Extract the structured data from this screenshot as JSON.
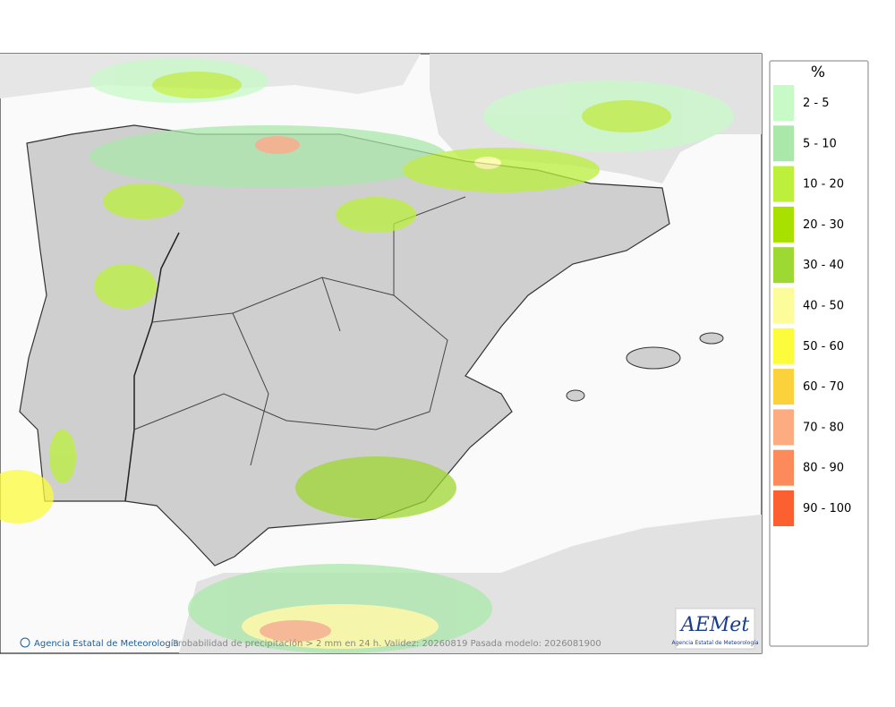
{
  "map": {
    "footer": {
      "agency": "Agencia Estatal de Meteorología",
      "caption": "Probabilidad de precipitación > 2 mm en 24 h. Validez: 20260819 Pasada modelo: 2026081900"
    },
    "logo": {
      "text": "AEMet",
      "subtitle": "Agencia Estatal de Meteorología"
    }
  },
  "legend": {
    "title": "%",
    "items": [
      {
        "label": "2 - 5",
        "color": "#c8fac8"
      },
      {
        "label": "5 - 10",
        "color": "#aae8aa"
      },
      {
        "label": "10 - 20",
        "color": "#bcf03c"
      },
      {
        "label": "20 - 30",
        "color": "#a8e000"
      },
      {
        "label": "30 - 40",
        "color": "#9ed832"
      },
      {
        "label": "40 - 50",
        "color": "#fcfc9a"
      },
      {
        "label": "50 - 60",
        "color": "#fcfc3c"
      },
      {
        "label": "60 - 70",
        "color": "#fcd23c"
      },
      {
        "label": "70 - 80",
        "color": "#fcac80"
      },
      {
        "label": "80 - 90",
        "color": "#fc8a5a"
      },
      {
        "label": "90 - 100",
        "color": "#fc6030"
      }
    ]
  }
}
